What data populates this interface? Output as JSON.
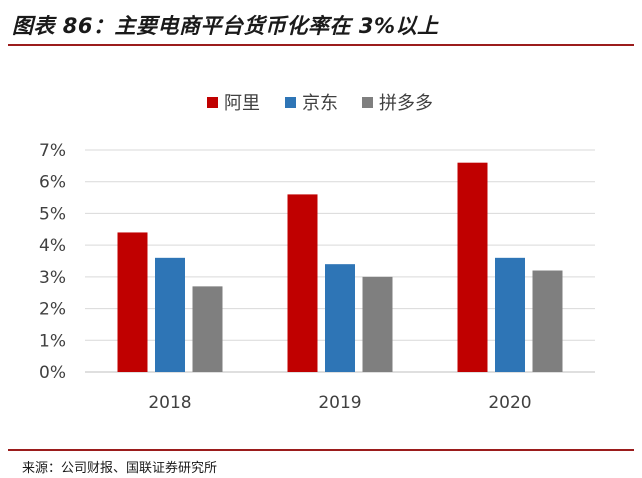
{
  "header": {
    "title": "图表 86：主要电商平台货币化率在 3%以上"
  },
  "footer": {
    "source": "来源：公司财报、国联证券研究所"
  },
  "colors": {
    "alibaba": "#c00000",
    "jd": "#2e75b6",
    "pdd": "#7f7f7f",
    "grid": "#d9d9d9",
    "rule": "#9b1c1c"
  },
  "chart_data": {
    "type": "bar",
    "categories": [
      "2018",
      "2019",
      "2020"
    ],
    "series": [
      {
        "name": "阿里",
        "values": [
          4.4,
          5.6,
          6.6
        ]
      },
      {
        "name": "京东",
        "values": [
          3.6,
          3.4,
          3.6
        ]
      },
      {
        "name": "拼多多",
        "values": [
          2.7,
          3.0,
          3.2
        ]
      }
    ],
    "yticks": [
      "0%",
      "1%",
      "2%",
      "3%",
      "4%",
      "5%",
      "6%",
      "7%"
    ],
    "ylim": [
      0,
      7
    ],
    "legend_position": "top-center",
    "grid": true,
    "title": "",
    "xlabel": "",
    "ylabel": ""
  }
}
